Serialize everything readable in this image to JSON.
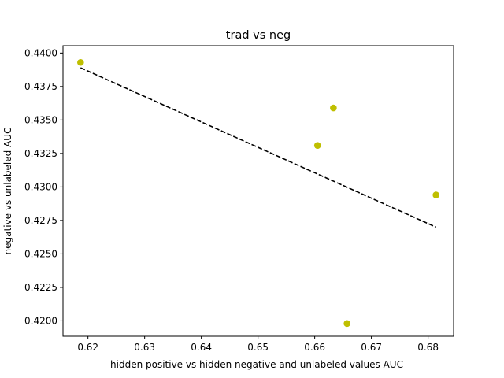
{
  "chart_data": {
    "type": "scatter",
    "title": "trad vs neg",
    "xlabel": "hidden positive vs hidden negative and unlabeled values AUC",
    "ylabel": "negative vs unlabeled AUC",
    "xlim": [
      0.6156,
      0.6845
    ],
    "ylim": [
      0.41885,
      0.44055
    ],
    "xticks": [
      0.62,
      0.63,
      0.64,
      0.65,
      0.66,
      0.67,
      0.68
    ],
    "xtick_labels": [
      "0.62",
      "0.63",
      "0.64",
      "0.65",
      "0.66",
      "0.67",
      "0.68"
    ],
    "yticks": [
      0.42,
      0.4225,
      0.425,
      0.4275,
      0.43,
      0.4325,
      0.435,
      0.4375,
      0.44
    ],
    "ytick_labels": [
      "0.4200",
      "0.4225",
      "0.4250",
      "0.4275",
      "0.4300",
      "0.4325",
      "0.4350",
      "0.4375",
      "0.4400"
    ],
    "grid": false,
    "points": [
      {
        "x": 0.6187,
        "y": 0.4393
      },
      {
        "x": 0.6605,
        "y": 0.4331
      },
      {
        "x": 0.6633,
        "y": 0.4359
      },
      {
        "x": 0.6657,
        "y": 0.4198
      },
      {
        "x": 0.6814,
        "y": 0.4294
      }
    ],
    "trendline": {
      "x": [
        0.6187,
        0.6814
      ],
      "y": [
        0.4389,
        0.427
      ]
    },
    "point_color": "#bfbf00",
    "line_color": "#000000"
  }
}
